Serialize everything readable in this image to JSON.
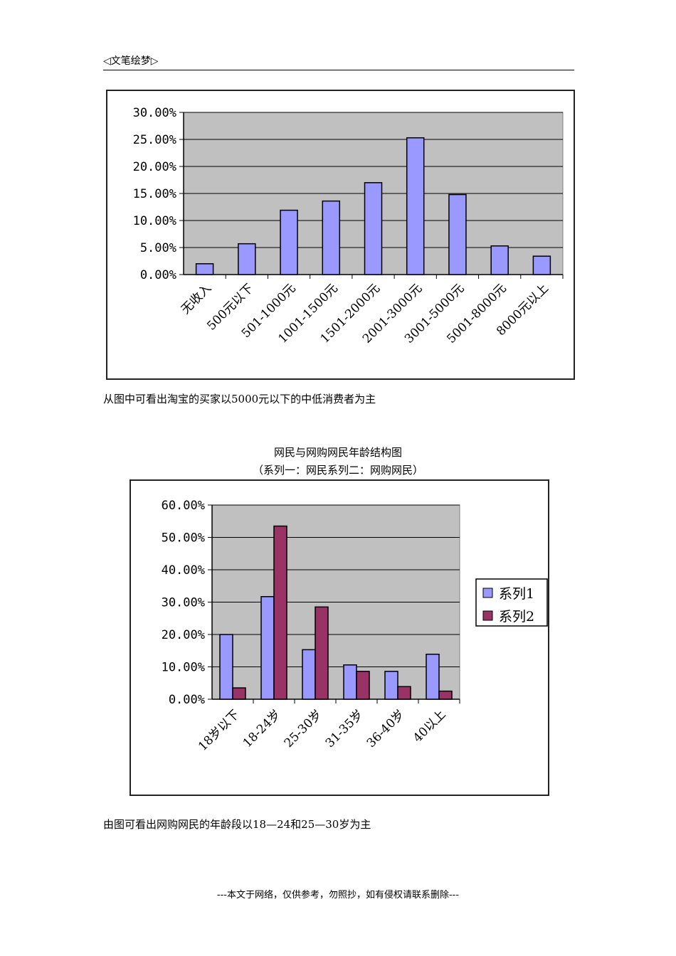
{
  "header": {
    "text": "◁文笔绘梦▷"
  },
  "paragraphs": {
    "p1": "从图中可看出淘宝的买家以5000元以下的中低消费者为主",
    "p2": "由图可看出网购网民的年龄段以18—24和25—30岁为主"
  },
  "captions": {
    "chart2_title": "网民与网购网民年龄结构图",
    "chart2_subtitle": "（系列一：网民系列二：网购网民）"
  },
  "footer": "---本文于网络，仅供参考，勿照抄，如有侵权请联系删除---",
  "colors": {
    "plot_bg": "#c0c0c0",
    "series1": "#9999ff",
    "series2": "#993366",
    "grid": "#000000"
  },
  "chart_data": [
    {
      "type": "bar",
      "categories": [
        "无收入",
        "500元以下",
        "501-1000元",
        "1001-1500元",
        "1501-2000元",
        "2001-3000元",
        "3001-5000元",
        "5001-8000元",
        "8000元以上"
      ],
      "values": [
        0.02,
        0.057,
        0.119,
        0.136,
        0.17,
        0.253,
        0.148,
        0.053,
        0.034
      ],
      "yticks": [
        "30.00%",
        "25.00%",
        "20.00%",
        "15.00%",
        "10.00%",
        "5.00%",
        "0.00%"
      ],
      "ylim": [
        0,
        0.3
      ],
      "grid": true,
      "legend": false
    },
    {
      "type": "bar",
      "categories": [
        "18岁以下",
        "18-24岁",
        "25-30岁",
        "31-35岁",
        "36-40岁",
        "40以上"
      ],
      "series": [
        {
          "name": "系列1",
          "values": [
            0.2,
            0.317,
            0.153,
            0.106,
            0.086,
            0.139
          ]
        },
        {
          "name": "系列2",
          "values": [
            0.035,
            0.535,
            0.285,
            0.086,
            0.039,
            0.025
          ]
        }
      ],
      "yticks": [
        "60.00%",
        "50.00%",
        "40.00%",
        "30.00%",
        "20.00%",
        "10.00%",
        "0.00%"
      ],
      "ylim": [
        0,
        0.6
      ],
      "grid": true,
      "legend": "right"
    }
  ]
}
